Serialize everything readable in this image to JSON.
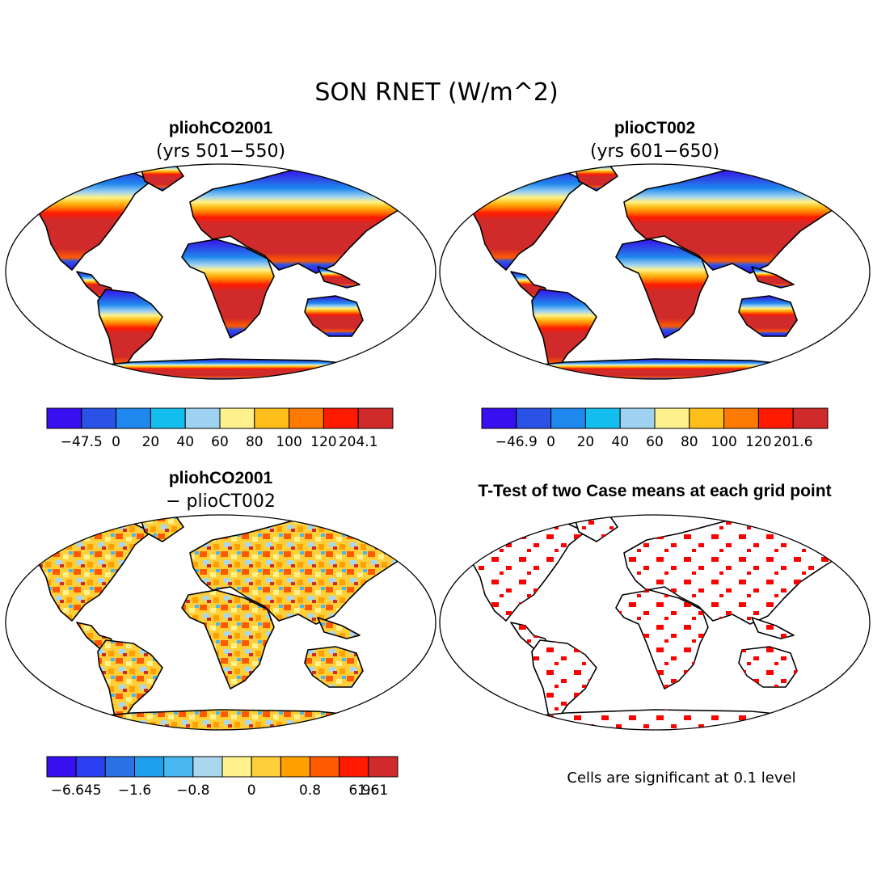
{
  "figure": {
    "title": "SON RNET (W/m^2)",
    "panels": [
      {
        "title": "pliohCO2001",
        "subtitle": "(yrs 501−550)",
        "palette": [
          "#3810f0",
          "#2a52e6",
          "#1f88ee",
          "#14bff0",
          "#9fd2f0",
          "#fff28c",
          "#ffbf1a",
          "#ff7a00",
          "#ff1a00",
          "#d02a2a"
        ],
        "ticks": [
          "−47.5",
          "0",
          "20",
          "40",
          "60",
          "80",
          "100",
          "120",
          "204.1"
        ]
      },
      {
        "title": "plioCT002",
        "subtitle": "(yrs 601−650)",
        "palette": [
          "#3810f0",
          "#2a52e6",
          "#1f88ee",
          "#14bff0",
          "#9fd2f0",
          "#fff28c",
          "#ffbf1a",
          "#ff7a00",
          "#ff1a00",
          "#d02a2a"
        ],
        "ticks": [
          "−46.9",
          "0",
          "20",
          "40",
          "60",
          "80",
          "100",
          "120",
          "201.6"
        ]
      },
      {
        "title": "pliohCO2001",
        "subtitle": "− plioCT002",
        "palette": [
          "#3810f0",
          "#2a3ff0",
          "#2a72e6",
          "#1fa0ee",
          "#4ab8f0",
          "#a9d8f0",
          "#fff28c",
          "#ffcf3a",
          "#ffa000",
          "#ff5a00",
          "#ff1a00",
          "#d02a2a"
        ],
        "ticks": [
          "−6.645",
          "−1.6",
          "−0.8",
          "0",
          "0.8",
          "1.6",
          "6.961"
        ]
      },
      {
        "title": "T-Test of two Case means at each grid point",
        "significance_color": "#ff0000"
      }
    ],
    "note": "Cells are significant at 0.1 level"
  }
}
